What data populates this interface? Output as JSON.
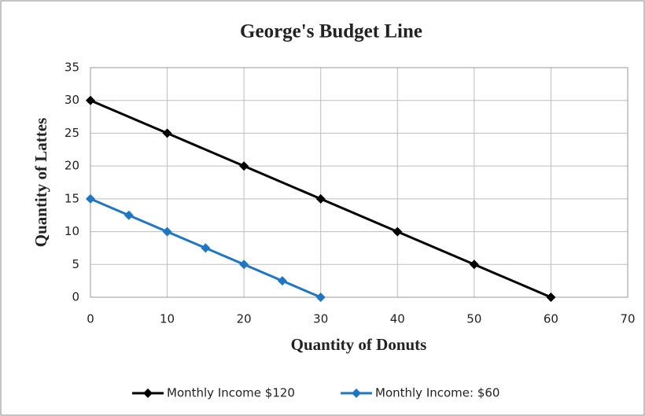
{
  "chart_data": {
    "type": "line",
    "title": "George's Budget Line",
    "xlabel": "Quantity of Donuts",
    "ylabel": "Quantity of Lattes",
    "xlim": [
      0,
      70
    ],
    "xticks": [
      0,
      10,
      20,
      30,
      40,
      50,
      60,
      70
    ],
    "ylim": [
      0,
      35
    ],
    "yticks": [
      0,
      5,
      10,
      15,
      20,
      25,
      30,
      35
    ],
    "grid": true,
    "legend": "bottom",
    "series": [
      {
        "name": "Monthly Income $120",
        "color": "#000000",
        "x": [
          0,
          10,
          20,
          30,
          40,
          50,
          60
        ],
        "values": [
          30,
          25,
          20,
          15,
          10,
          5,
          0
        ]
      },
      {
        "name": "Monthly Income: $60",
        "color": "#1f77c4",
        "x": [
          0,
          5,
          10,
          15,
          20,
          25,
          30
        ],
        "values": [
          15,
          12.5,
          10,
          7.5,
          5,
          2.5,
          0
        ]
      }
    ]
  }
}
